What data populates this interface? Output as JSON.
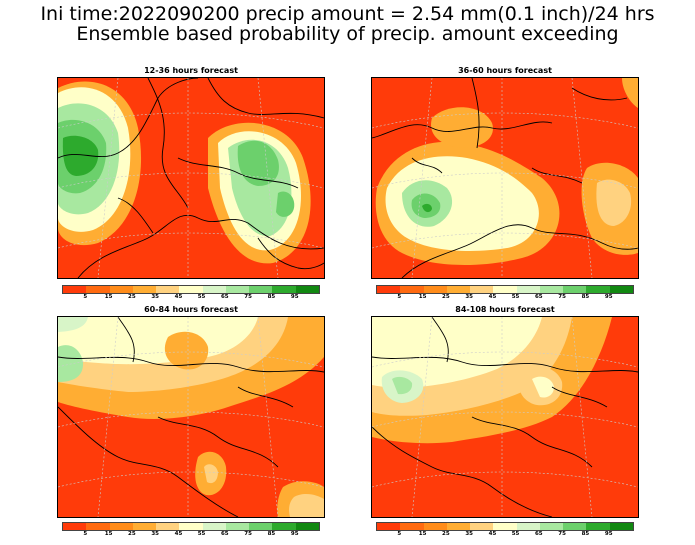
{
  "title_line1": "Ini time:2022090200 precip amount = 2.54 mm(0.1 inch)/24 hrs",
  "title_line2": "Ensemble based probability of precip. amount exceeding",
  "panels": [
    {
      "title": "12-36 hours forecast"
    },
    {
      "title": "36-60 hours forecast"
    },
    {
      "title": "60-84 hours forecast"
    },
    {
      "title": "84-108 hours forecast"
    }
  ],
  "colorbar": {
    "labels": [
      "5",
      "15",
      "25",
      "35",
      "45",
      "55",
      "65",
      "75",
      "85",
      "95"
    ],
    "colors": [
      "#ff3b0a",
      "#ff6a10",
      "#ff8c1a",
      "#ffad33",
      "#ffd280",
      "#ffffc8",
      "#d8f5c8",
      "#a8e8a0",
      "#6cd06c",
      "#2daa2d",
      "#118811"
    ]
  }
}
